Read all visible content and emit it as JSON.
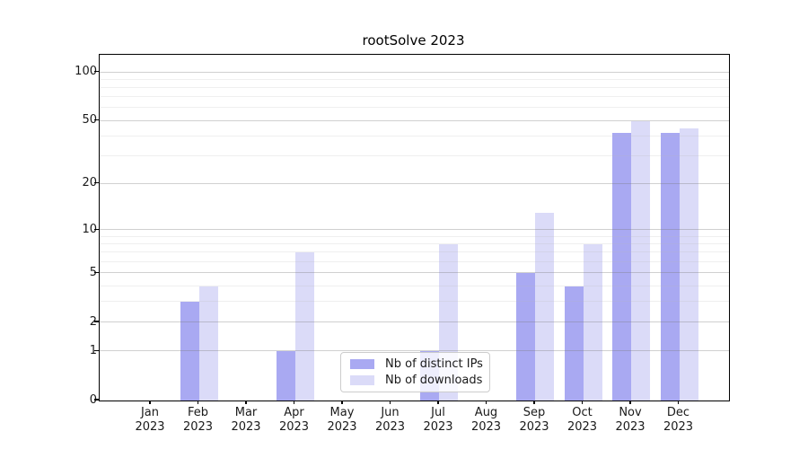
{
  "title": "rootSolve 2023",
  "colors": {
    "distinct_ips_bar": "#a9a9f2",
    "downloads_bar": "#dbdbf8",
    "axis": "#000000",
    "text": "#1a1a1a",
    "legend_border": "#cccccc"
  },
  "legend": {
    "items": [
      {
        "label": "Nb of distinct IPs",
        "series": "distinct_ips"
      },
      {
        "label": "Nb of downloads",
        "series": "downloads"
      }
    ]
  },
  "chart_data": {
    "type": "bar",
    "title": "rootSolve 2023",
    "categories": [
      "Jan 2023",
      "Feb 2023",
      "Mar 2023",
      "Apr 2023",
      "May 2023",
      "Jun 2023",
      "Jul 2023",
      "Aug 2023",
      "Sep 2023",
      "Oct 2023",
      "Nov 2023",
      "Dec 2023"
    ],
    "series": [
      {
        "name": "Nb of distinct IPs",
        "values": [
          0,
          3,
          0,
          1,
          0,
          0,
          1,
          0,
          5,
          4,
          42,
          42
        ]
      },
      {
        "name": "Nb of downloads",
        "values": [
          0,
          4,
          0,
          7,
          0,
          0,
          8,
          0,
          13,
          8,
          50,
          45
        ]
      }
    ],
    "xlabel": "",
    "ylabel": "",
    "yticks": [
      0,
      1,
      2,
      5,
      10,
      20,
      50,
      100
    ],
    "ylim": [
      0,
      130
    ],
    "yscale": "log1p",
    "grid": true,
    "legend_position": "inside lower center"
  }
}
